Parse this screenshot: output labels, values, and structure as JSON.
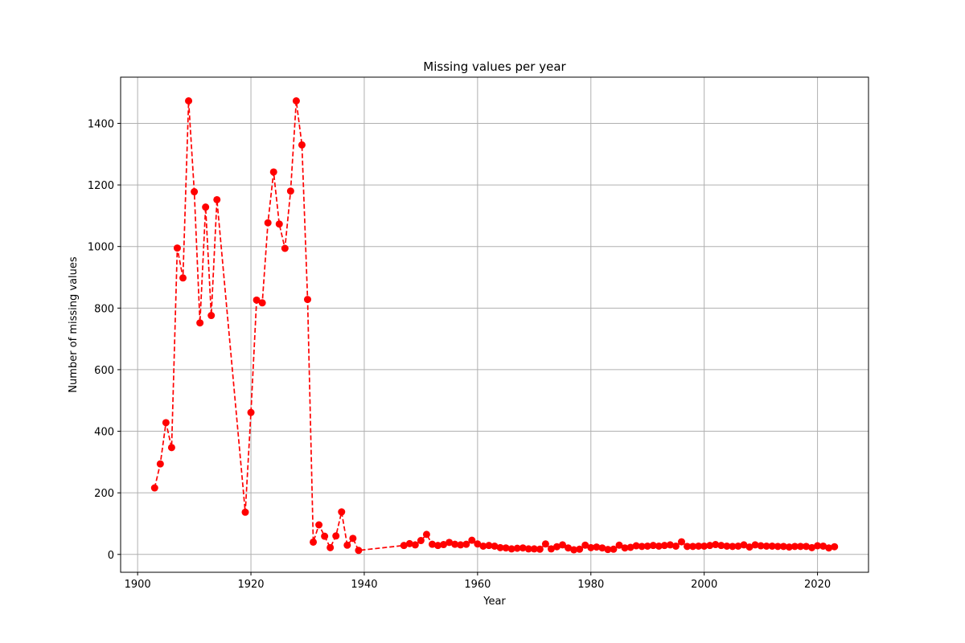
{
  "chart_data": {
    "type": "line",
    "title": "Missing values per year",
    "xlabel": "Year",
    "ylabel": "Number of missing values",
    "xlim": [
      1897,
      2029
    ],
    "ylim": [
      -58,
      1550
    ],
    "xticks": [
      1900,
      1920,
      1940,
      1960,
      1980,
      2000,
      2020
    ],
    "yticks": [
      0,
      200,
      400,
      600,
      800,
      1000,
      1200,
      1400
    ],
    "grid": true,
    "series": [
      {
        "color": "#ff0000",
        "line_style": "dashed",
        "marker": "circle",
        "segments": [
          {
            "x": [
              1903,
              1904,
              1905,
              1906,
              1907,
              1908,
              1909,
              1910,
              1911,
              1912,
              1913,
              1914,
              1919,
              1920,
              1921,
              1922,
              1923,
              1924,
              1925,
              1926,
              1927,
              1928,
              1929,
              1930,
              1931,
              1932,
              1933,
              1934,
              1935,
              1936,
              1937,
              1938,
              1939
            ],
            "y": [
              216,
              294,
              428,
              347,
              995,
              898,
              1473,
              1178,
              752,
              1128,
              776,
              1152,
              137,
              461,
              826,
              817,
              1077,
              1242,
              1073,
              994,
              1180,
              1473,
              1330,
              828,
              40,
              96,
              59,
              22,
              60,
              138,
              30,
              52,
              13
            ]
          },
          {
            "x": [
              1947,
              1948,
              1949,
              1950,
              1951,
              1952,
              1953,
              1954,
              1955,
              1956,
              1957,
              1958,
              1959,
              1960,
              1961,
              1962,
              1963,
              1964,
              1965,
              1966,
              1967,
              1968,
              1969,
              1970,
              1971,
              1972,
              1973,
              1974,
              1975,
              1976,
              1977,
              1978,
              1979,
              1980,
              1981,
              1982,
              1983,
              1984,
              1985,
              1986,
              1987,
              1988,
              1989,
              1990,
              1991,
              1992,
              1993,
              1994,
              1995,
              1996,
              1997,
              1998,
              1999,
              2000,
              2001,
              2002,
              2003,
              2004,
              2005,
              2006,
              2007,
              2008,
              2009,
              2010,
              2011,
              2012,
              2013,
              2014,
              2015,
              2016,
              2017,
              2018,
              2019,
              2020,
              2021,
              2022,
              2023
            ],
            "y": [
              29,
              35,
              31,
              45,
              65,
              33,
              29,
              32,
              39,
              33,
              31,
              33,
              46,
              34,
              27,
              29,
              27,
              22,
              21,
              18,
              20,
              21,
              18,
              18,
              17,
              34,
              18,
              25,
              31,
              21,
              15,
              17,
              30,
              22,
              24,
              21,
              16,
              17,
              30,
              21,
              23,
              28,
              26,
              27,
              29,
              27,
              29,
              31,
              27,
              41,
              26,
              26,
              27,
              27,
              29,
              32,
              29,
              27,
              26,
              27,
              31,
              24,
              31,
              28,
              27,
              27,
              26,
              26,
              24,
              26,
              26,
              26,
              22,
              28,
              27,
              21,
              25
            ]
          }
        ]
      }
    ]
  }
}
